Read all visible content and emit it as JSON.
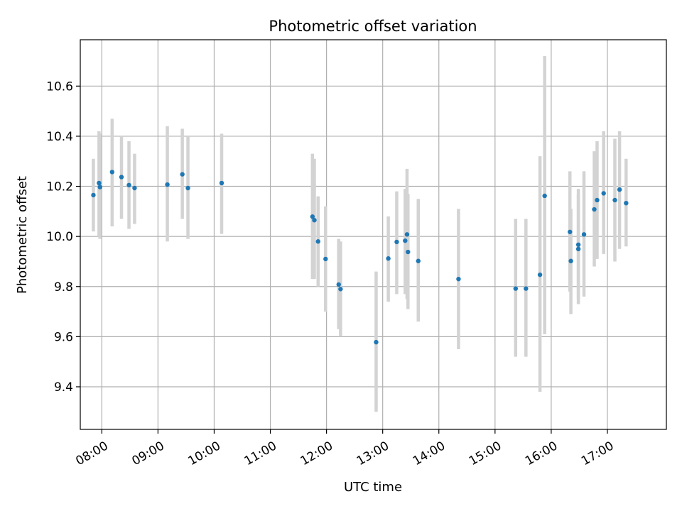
{
  "chart_data": {
    "type": "scatter",
    "title": "Photometric offset variation",
    "xlabel": "UTC time",
    "ylabel": "Photometric offset",
    "xlim": [
      "07:37",
      "18:03"
    ],
    "ylim": [
      9.23,
      10.785
    ],
    "x_ticks": [
      "08:00",
      "09:00",
      "10:00",
      "11:00",
      "12:00",
      "13:00",
      "14:00",
      "15:00",
      "16:00",
      "17:00"
    ],
    "y_ticks": [
      9.4,
      9.6,
      9.8,
      10.0,
      10.2,
      10.4,
      10.6
    ],
    "y_tick_labels": [
      "9.4",
      "9.6",
      "9.8",
      "10.0",
      "10.2",
      "10.4",
      "10.6"
    ],
    "grid": true,
    "series": [
      {
        "marker_color": "#1f77b4",
        "errorbar_color": "#d3d3d3",
        "points": [
          {
            "x": "07:51",
            "y": 10.165,
            "low": 10.02,
            "high": 10.31
          },
          {
            "x": "07:57",
            "y": 10.213,
            "low": 10.0,
            "high": 10.42
          },
          {
            "x": "07:58",
            "y": 10.197,
            "low": 9.99,
            "high": 10.41
          },
          {
            "x": "08:11",
            "y": 10.257,
            "low": 10.04,
            "high": 10.47
          },
          {
            "x": "08:21",
            "y": 10.237,
            "low": 10.07,
            "high": 10.4
          },
          {
            "x": "08:29",
            "y": 10.205,
            "low": 10.03,
            "high": 10.38
          },
          {
            "x": "08:35",
            "y": 10.193,
            "low": 10.05,
            "high": 10.33
          },
          {
            "x": "09:10",
            "y": 10.207,
            "low": 9.98,
            "high": 10.44
          },
          {
            "x": "09:26",
            "y": 10.248,
            "low": 10.07,
            "high": 10.43
          },
          {
            "x": "09:32",
            "y": 10.193,
            "low": 9.99,
            "high": 10.4
          },
          {
            "x": "10:08",
            "y": 10.213,
            "low": 10.01,
            "high": 10.41
          },
          {
            "x": "11:45",
            "y": 10.079,
            "low": 9.83,
            "high": 10.33
          },
          {
            "x": "11:47",
            "y": 10.065,
            "low": 9.83,
            "high": 10.31
          },
          {
            "x": "11:51",
            "y": 9.98,
            "low": 9.8,
            "high": 10.16
          },
          {
            "x": "11:59",
            "y": 9.91,
            "low": 9.7,
            "high": 10.12
          },
          {
            "x": "12:13",
            "y": 9.808,
            "low": 9.63,
            "high": 9.99
          },
          {
            "x": "12:15",
            "y": 9.79,
            "low": 9.6,
            "high": 9.98
          },
          {
            "x": "12:53",
            "y": 9.578,
            "low": 9.3,
            "high": 9.86
          },
          {
            "x": "13:06",
            "y": 9.912,
            "low": 9.74,
            "high": 10.08
          },
          {
            "x": "13:15",
            "y": 9.978,
            "low": 9.77,
            "high": 10.18
          },
          {
            "x": "13:24",
            "y": 9.983,
            "low": 9.77,
            "high": 10.19
          },
          {
            "x": "13:26",
            "y": 10.008,
            "low": 9.75,
            "high": 10.27
          },
          {
            "x": "13:27",
            "y": 9.938,
            "low": 9.71,
            "high": 10.17
          },
          {
            "x": "13:38",
            "y": 9.902,
            "low": 9.66,
            "high": 10.15
          },
          {
            "x": "14:21",
            "y": 9.83,
            "low": 9.55,
            "high": 10.11
          },
          {
            "x": "15:22",
            "y": 9.792,
            "low": 9.52,
            "high": 10.07
          },
          {
            "x": "15:33",
            "y": 9.792,
            "low": 9.52,
            "high": 10.07
          },
          {
            "x": "15:48",
            "y": 9.847,
            "low": 9.38,
            "high": 10.32
          },
          {
            "x": "15:53",
            "y": 10.162,
            "low": 9.61,
            "high": 10.72
          },
          {
            "x": "16:20",
            "y": 10.018,
            "low": 9.78,
            "high": 10.26
          },
          {
            "x": "16:21",
            "y": 9.902,
            "low": 9.69,
            "high": 10.11
          },
          {
            "x": "16:29",
            "y": 9.967,
            "low": 9.75,
            "high": 10.19
          },
          {
            "x": "16:29",
            "y": 9.95,
            "low": 9.73,
            "high": 10.17
          },
          {
            "x": "16:35",
            "y": 10.008,
            "low": 9.76,
            "high": 10.26
          },
          {
            "x": "16:46",
            "y": 10.108,
            "low": 9.88,
            "high": 10.34
          },
          {
            "x": "16:49",
            "y": 10.145,
            "low": 9.91,
            "high": 10.38
          },
          {
            "x": "16:56",
            "y": 10.172,
            "low": 9.93,
            "high": 10.42
          },
          {
            "x": "17:08",
            "y": 10.145,
            "low": 9.9,
            "high": 10.39
          },
          {
            "x": "17:13",
            "y": 10.187,
            "low": 9.95,
            "high": 10.42
          },
          {
            "x": "17:20",
            "y": 10.133,
            "low": 9.96,
            "high": 10.31
          }
        ]
      }
    ]
  }
}
